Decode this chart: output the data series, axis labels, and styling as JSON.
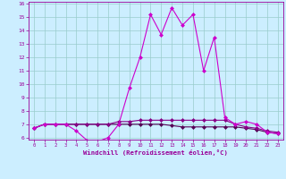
{
  "xlabel": "Windchill (Refroidissement éolien,°C)",
  "x": [
    0,
    1,
    2,
    3,
    4,
    5,
    6,
    7,
    8,
    9,
    10,
    11,
    12,
    13,
    14,
    15,
    16,
    17,
    18,
    19,
    20,
    21,
    22,
    23
  ],
  "line1": [
    6.7,
    7.0,
    7.0,
    7.0,
    6.5,
    5.8,
    5.7,
    6.0,
    7.0,
    9.7,
    12.0,
    15.2,
    13.7,
    15.7,
    14.4,
    15.2,
    11.0,
    13.5,
    7.5,
    7.0,
    7.2,
    7.0,
    6.4,
    6.3
  ],
  "line2": [
    6.7,
    7.0,
    7.0,
    7.0,
    7.0,
    7.0,
    7.0,
    7.0,
    7.2,
    7.2,
    7.3,
    7.3,
    7.3,
    7.3,
    7.3,
    7.3,
    7.3,
    7.3,
    7.3,
    7.0,
    6.8,
    6.7,
    6.5,
    6.4
  ],
  "line3": [
    6.7,
    7.0,
    7.0,
    7.0,
    7.0,
    7.0,
    7.0,
    7.0,
    7.0,
    7.0,
    7.0,
    7.0,
    7.0,
    6.9,
    6.8,
    6.8,
    6.8,
    6.8,
    6.8,
    6.8,
    6.7,
    6.6,
    6.4,
    6.3
  ],
  "line_color1": "#cc00cc",
  "line_color2": "#880088",
  "line_color3": "#550055",
  "bg_color": "#cceeff",
  "grid_color": "#99cccc",
  "tick_color": "#990099",
  "xlabel_color": "#990099",
  "ylim": [
    6,
    16
  ],
  "xlim": [
    -0.5,
    23.5
  ],
  "yticks": [
    6,
    7,
    8,
    9,
    10,
    11,
    12,
    13,
    14,
    15,
    16
  ],
  "xticks": [
    0,
    1,
    2,
    3,
    4,
    5,
    6,
    7,
    8,
    9,
    10,
    11,
    12,
    13,
    14,
    15,
    16,
    17,
    18,
    19,
    20,
    21,
    22,
    23
  ],
  "marker": "D",
  "markersize": 2.5,
  "linewidth": 0.8
}
